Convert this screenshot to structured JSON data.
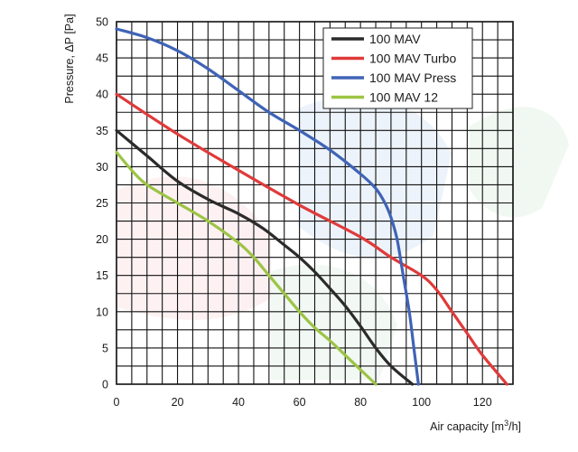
{
  "chart_data": {
    "type": "line",
    "title": "",
    "xlabel": "Air capacity [m³/h]",
    "ylabel": "Pressure, ΔP [Pa]",
    "xlim": [
      0,
      130
    ],
    "ylim": [
      0,
      50
    ],
    "x_ticks": [
      0,
      20,
      40,
      60,
      80,
      100,
      120
    ],
    "y_ticks": [
      0,
      5,
      10,
      15,
      20,
      25,
      30,
      35,
      40,
      45,
      50
    ],
    "grid": true,
    "legend_position": "top-right",
    "series": [
      {
        "name": "100 MAV",
        "color": "#2b2b2b",
        "points": [
          [
            0,
            35
          ],
          [
            10,
            31.5
          ],
          [
            20,
            28
          ],
          [
            30,
            25.5
          ],
          [
            40,
            23.5
          ],
          [
            48,
            21.5
          ],
          [
            55,
            19.2
          ],
          [
            60,
            17.5
          ],
          [
            65,
            15.5
          ],
          [
            70,
            13.2
          ],
          [
            75,
            10.8
          ],
          [
            80,
            8
          ],
          [
            85,
            5
          ],
          [
            90,
            2.5
          ],
          [
            97,
            0
          ]
        ]
      },
      {
        "name": "100 MAV Turbo",
        "color": "#e03a3a",
        "points": [
          [
            0,
            40
          ],
          [
            20,
            34.5
          ],
          [
            40,
            29.5
          ],
          [
            60,
            24.7
          ],
          [
            80,
            20.3
          ],
          [
            90,
            17.5
          ],
          [
            100,
            15
          ],
          [
            105,
            13
          ],
          [
            110,
            10
          ],
          [
            115,
            7
          ],
          [
            120,
            4
          ],
          [
            128,
            0
          ]
        ]
      },
      {
        "name": "100 MAV Press",
        "color": "#3f63b6",
        "points": [
          [
            0,
            49
          ],
          [
            10,
            47.8
          ],
          [
            20,
            46
          ],
          [
            30,
            43.5
          ],
          [
            40,
            40.5
          ],
          [
            50,
            37.5
          ],
          [
            60,
            35
          ],
          [
            70,
            32.3
          ],
          [
            80,
            29
          ],
          [
            85,
            27
          ],
          [
            88,
            25
          ],
          [
            90,
            23
          ],
          [
            92,
            20
          ],
          [
            94,
            15
          ],
          [
            96,
            10
          ],
          [
            97.5,
            5
          ],
          [
            99,
            0
          ]
        ]
      },
      {
        "name": "100 MAV 12",
        "color": "#9cc444",
        "points": [
          [
            0,
            32
          ],
          [
            5,
            29.5
          ],
          [
            10,
            27.5
          ],
          [
            20,
            25
          ],
          [
            30,
            22.5
          ],
          [
            40,
            19.5
          ],
          [
            45,
            17.5
          ],
          [
            50,
            15
          ],
          [
            55,
            12.5
          ],
          [
            60,
            10
          ],
          [
            65,
            7.8
          ],
          [
            70,
            6
          ],
          [
            75,
            4
          ],
          [
            80,
            2
          ],
          [
            85,
            0
          ]
        ]
      }
    ]
  }
}
